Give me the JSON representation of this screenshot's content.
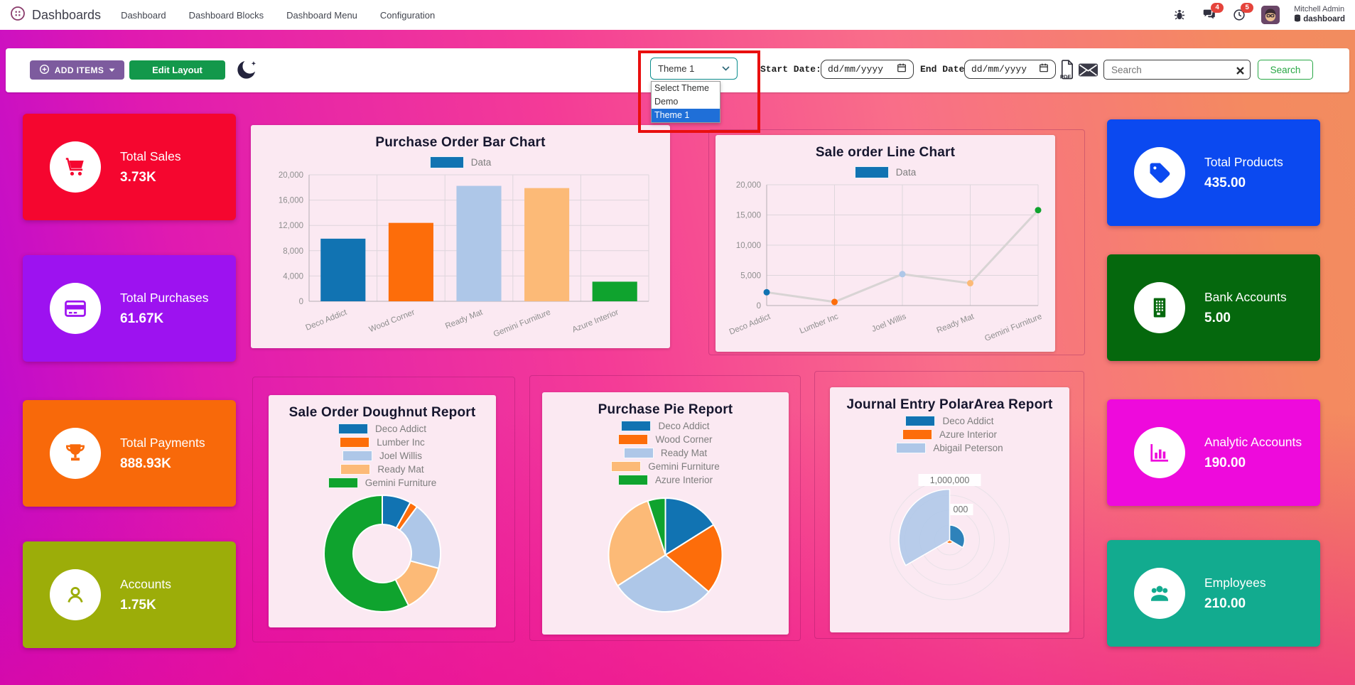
{
  "nav": {
    "brand": "Dashboards",
    "items": [
      "Dashboard",
      "Dashboard Blocks",
      "Dashboard Menu",
      "Configuration"
    ],
    "message_badge": "4",
    "activity_badge": "5",
    "user_name": "Mitchell Admin",
    "database": "dashboard"
  },
  "toolbar": {
    "add_items_label": "ADD ITEMS",
    "edit_layout_label": "Edit Layout",
    "theme_select": {
      "value": "Theme 1",
      "options": [
        "Select Theme",
        "Demo",
        "Theme 1"
      ],
      "highlighted_option": "Theme 1"
    },
    "start_date_label": "Start Date:",
    "end_date_label": "End Date:",
    "date_placeholder": "dd/mm/yyyy",
    "search_placeholder": "Search",
    "search_button_label": "Search"
  },
  "kpi_left": [
    {
      "label": "Total Sales",
      "value": "3.73K",
      "color": "#f5062f",
      "icon": "shopping-cart"
    },
    {
      "label": "Total Purchases",
      "value": "61.67K",
      "color": "#9d12f0",
      "icon": "credit-card"
    },
    {
      "label": "Total Payments",
      "value": "888.93K",
      "color": "#f8690a",
      "icon": "trophy"
    },
    {
      "label": "Accounts",
      "value": "1.75K",
      "color": "#9cad09",
      "icon": "person"
    }
  ],
  "kpi_right": [
    {
      "label": "Total Products",
      "value": "435.00",
      "color": "#0b49f0",
      "icon": "tag"
    },
    {
      "label": "Bank Accounts",
      "value": "5.00",
      "color": "#05680d",
      "icon": "bank-building"
    },
    {
      "label": "Analytic Accounts",
      "value": "190.00",
      "color": "#ee0adc",
      "icon": "bar-chart"
    },
    {
      "label": "Employees",
      "value": "210.00",
      "color": "#12ab8f",
      "icon": "people-group"
    }
  ],
  "palette": [
    "#1173b2",
    "#fd6d0a",
    "#aec7e8",
    "#fcba77",
    "#0fa32e"
  ],
  "chart_data": [
    {
      "type": "bar",
      "title": "Purchase Order Bar Chart",
      "legend": [
        "Data"
      ],
      "categories": [
        "Deco Addict",
        "Wood Corner",
        "Ready Mat",
        "Gemini Furniture",
        "Azure Interior"
      ],
      "values": [
        9900,
        12400,
        18250,
        17900,
        3100
      ],
      "ylim": [
        0,
        20000
      ],
      "ytick_step": 4000,
      "grid": true,
      "legend_position": "top"
    },
    {
      "type": "line",
      "title": "Sale order Line Chart",
      "legend": [
        "Data"
      ],
      "categories": [
        "Deco Addict",
        "Lumber Inc",
        "Joel Willis",
        "Ready Mat",
        "Gemini Furniture"
      ],
      "values": [
        2200,
        600,
        5200,
        3700,
        15800
      ],
      "ylim": [
        0,
        20000
      ],
      "ytick_step": 5000,
      "line_color": "#d8d4d4",
      "grid": true,
      "legend_position": "top"
    },
    {
      "type": "doughnut",
      "title": "Sale Order Doughnut Report",
      "labels": [
        "Deco Addict",
        "Lumber Inc",
        "Joel Willis",
        "Ready Mat",
        "Gemini Furniture"
      ],
      "values": [
        2200,
        600,
        5200,
        3700,
        15800
      ],
      "legend_position": "top"
    },
    {
      "type": "pie",
      "title": "Purchase Pie Report",
      "labels": [
        "Deco Addict",
        "Wood Corner",
        "Ready Mat",
        "Gemini Furniture",
        "Azure Interior"
      ],
      "values": [
        9900,
        12400,
        18250,
        17900,
        3100
      ],
      "legend_position": "top"
    },
    {
      "type": "polarArea",
      "title": "Journal Entry PolarArea Report",
      "labels": [
        "Deco Addict",
        "Azure Interior",
        "Abigail Peterson"
      ],
      "values": [
        250000,
        60000,
        850000
      ],
      "rlim": [
        0,
        1000000
      ],
      "rtick_labels": [
        "1,000,000",
        "000"
      ],
      "legend_position": "top"
    }
  ]
}
